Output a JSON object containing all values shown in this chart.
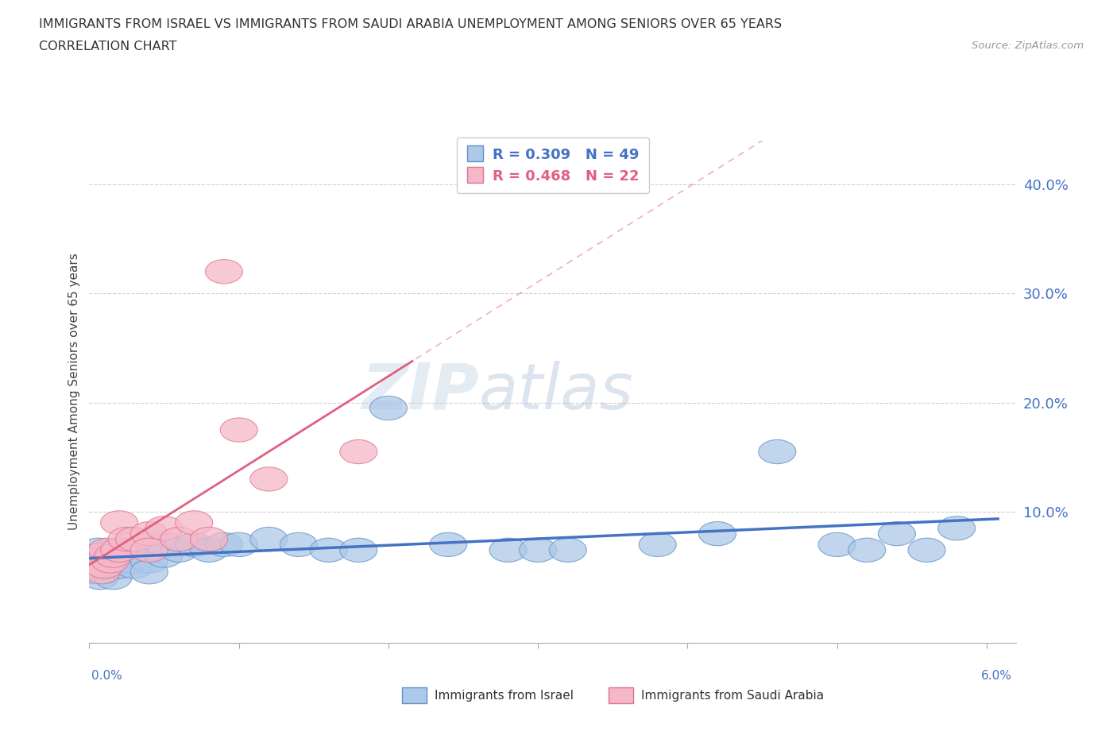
{
  "title_line1": "IMMIGRANTS FROM ISRAEL VS IMMIGRANTS FROM SAUDI ARABIA UNEMPLOYMENT AMONG SENIORS OVER 65 YEARS",
  "title_line2": "CORRELATION CHART",
  "source_text": "Source: ZipAtlas.com",
  "ylabel": "Unemployment Among Seniors over 65 years",
  "xlim": [
    0.0,
    0.062
  ],
  "ylim": [
    -0.02,
    0.44
  ],
  "yticks_right": [
    0.1,
    0.2,
    0.3,
    0.4
  ],
  "ytick_labels_right": [
    "10.0%",
    "20.0%",
    "30.0%",
    "40.0%"
  ],
  "xtick_positions": [
    0.0,
    0.01,
    0.02,
    0.03,
    0.04,
    0.05,
    0.06
  ],
  "watermark_zip": "ZIP",
  "watermark_atlas": "atlas",
  "israel_color": "#adc8e8",
  "israel_edge_color": "#6090c8",
  "israel_line_color": "#4472c4",
  "saudi_color": "#f5b8c8",
  "saudi_edge_color": "#e07090",
  "saudi_line_color": "#e06080",
  "israel_R": "R = 0.309",
  "israel_N": "N = 49",
  "saudi_R": "R = 0.468",
  "saudi_N": "N = 22",
  "grid_color": "#d0d0d0",
  "background_color": "#ffffff",
  "israel_x": [
    0.0002,
    0.0003,
    0.0004,
    0.0005,
    0.0006,
    0.0007,
    0.0008,
    0.001,
    0.001,
    0.0012,
    0.0013,
    0.0014,
    0.0015,
    0.0016,
    0.0018,
    0.002,
    0.002,
    0.0022,
    0.0025,
    0.003,
    0.003,
    0.003,
    0.003,
    0.004,
    0.004,
    0.005,
    0.005,
    0.006,
    0.007,
    0.008,
    0.009,
    0.01,
    0.012,
    0.014,
    0.016,
    0.018,
    0.02,
    0.024,
    0.028,
    0.03,
    0.032,
    0.038,
    0.042,
    0.046,
    0.05,
    0.052,
    0.054,
    0.056,
    0.058
  ],
  "israel_y": [
    0.055,
    0.045,
    0.06,
    0.05,
    0.065,
    0.04,
    0.055,
    0.05,
    0.045,
    0.06,
    0.05,
    0.055,
    0.065,
    0.04,
    0.055,
    0.05,
    0.06,
    0.065,
    0.055,
    0.06,
    0.055,
    0.05,
    0.065,
    0.055,
    0.045,
    0.06,
    0.07,
    0.065,
    0.07,
    0.065,
    0.07,
    0.07,
    0.075,
    0.07,
    0.065,
    0.065,
    0.195,
    0.07,
    0.065,
    0.065,
    0.065,
    0.07,
    0.08,
    0.155,
    0.07,
    0.065,
    0.08,
    0.065,
    0.085
  ],
  "saudi_x": [
    0.0002,
    0.0004,
    0.0006,
    0.0008,
    0.001,
    0.0012,
    0.0014,
    0.0016,
    0.002,
    0.002,
    0.0025,
    0.003,
    0.004,
    0.004,
    0.005,
    0.006,
    0.007,
    0.008,
    0.009,
    0.01,
    0.012,
    0.018
  ],
  "saudi_y": [
    0.055,
    0.05,
    0.06,
    0.045,
    0.05,
    0.065,
    0.055,
    0.06,
    0.065,
    0.09,
    0.075,
    0.075,
    0.08,
    0.065,
    0.085,
    0.075,
    0.09,
    0.075,
    0.32,
    0.175,
    0.13,
    0.155
  ]
}
